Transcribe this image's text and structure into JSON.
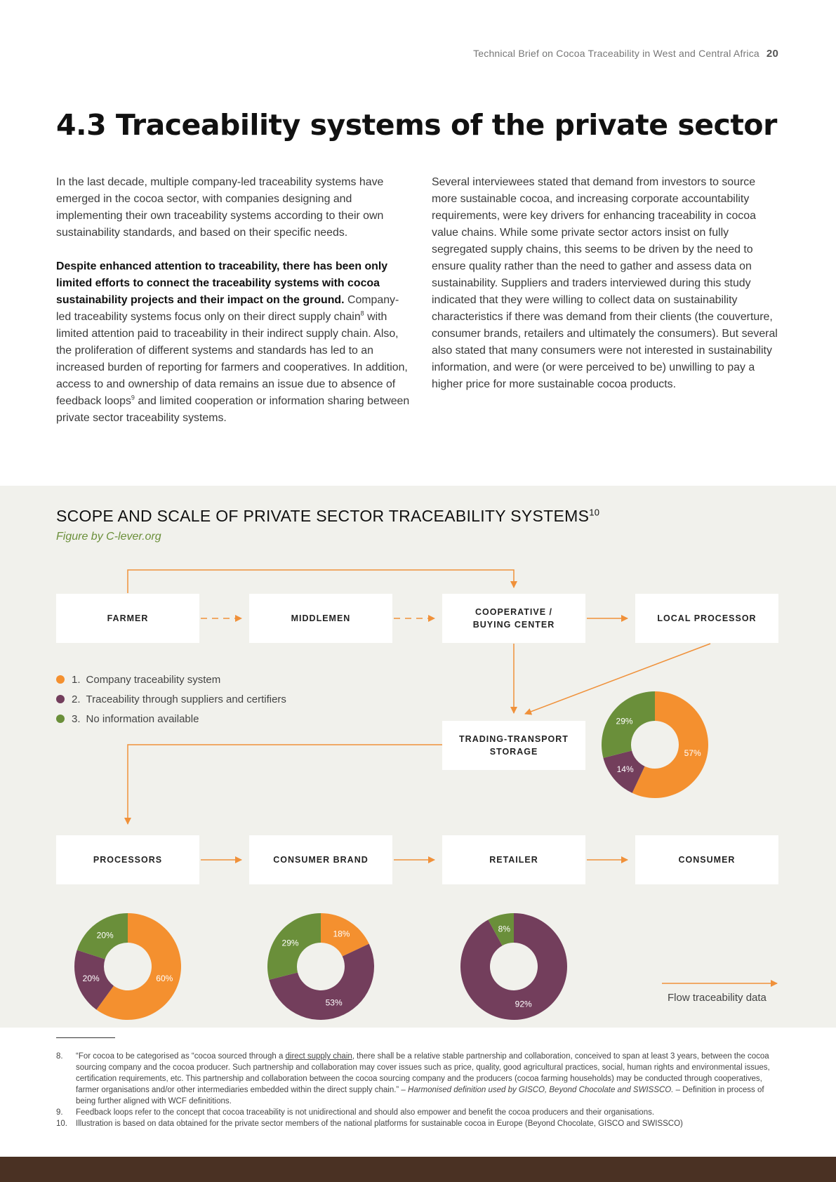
{
  "header": {
    "running_title": "Technical Brief on Cocoa Traceability in West and Central Africa",
    "page_number": "20"
  },
  "section_title": "4.3 Traceability systems of the private sector",
  "left_column": {
    "p1": "In the last decade, multiple company-led traceability systems have emerged in the cocoa sector, with companies designing and implementing their own traceability systems according to their own sustainability standards, and based on their specific needs.",
    "p2_bold": "Despite enhanced attention to traceability, there has been only limited efforts to connect the traceability systems with cocoa sustainability projects and their impact on the ground.",
    "p2_a": "Company-led traceability systems focus only on their direct supply chain",
    "p2_fn8": "8",
    "p2_b": " with limited attention paid to traceability in their indirect supply chain. Also, the proliferation of different systems and standards has led to an increased burden of reporting for farmers and cooperatives. In addition, access to and ownership of data remains an issue due to absence of feedback loops",
    "p2_fn9": "9",
    "p2_c": " and limited cooperation or information sharing between private sector traceability systems."
  },
  "right_column": {
    "p1": "Several interviewees stated that demand from investors to source more sustainable cocoa, and increasing corporate accountability requirements, were key drivers for enhancing traceability in cocoa value chains. While some private sector actors insist on fully segregated supply chains, this seems to be driven by the need to ensure quality rather than the need to gather and assess data on sustainability. Suppliers and traders interviewed during this study indicated that they were willing to collect data on sustainability characteristics if there was demand from their clients (the couverture, consumer brands, retailers and ultimately the consumers). But several also stated that many consumers were not interested in sustainability information, and were (or were perceived to be) unwilling to pay a higher price for more sustainable cocoa products."
  },
  "figure": {
    "title": "SCOPE AND SCALE OF PRIVATE SECTOR TRACEABILITY SYSTEMS",
    "title_fn": "10",
    "credit": "Figure by C-lever.org",
    "boxes": {
      "farmer": "FARMER",
      "middlemen": "MIDDLEMEN",
      "coop_line1": "COOPERATIVE /",
      "coop_line2": "BUYING CENTER",
      "local_processor": "LOCAL PROCESSOR",
      "trading_line1": "TRADING-TRANSPORT",
      "trading_line2": "STORAGE",
      "processors": "PROCESSORS",
      "consumer_brand": "CONSUMER BRAND",
      "retailer": "RETAILER",
      "consumer": "CONSUMER"
    },
    "legend": [
      {
        "num": "1.",
        "label": "Company traceability system",
        "color": "#f4902f"
      },
      {
        "num": "2.",
        "label": "Traceability through suppliers and certifiers",
        "color": "#733e5c"
      },
      {
        "num": "3.",
        "label": "No information available",
        "color": "#6a8f3a"
      }
    ],
    "flow_label": "Flow traceability data",
    "colors": {
      "arrow": "#f0913a",
      "company": "#f4902f",
      "suppliers": "#733e5c",
      "noinfo": "#6a8f3a"
    }
  },
  "chart_data": [
    {
      "type": "pie",
      "stage": "TRADING-TRANSPORT STORAGE",
      "categories": [
        "Company traceability system",
        "Traceability through suppliers and certifiers",
        "No information available"
      ],
      "values": [
        57,
        14,
        29
      ],
      "labels": [
        "57%",
        "14%",
        "29%"
      ]
    },
    {
      "type": "pie",
      "stage": "PROCESSORS",
      "categories": [
        "Company traceability system",
        "Traceability through suppliers and certifiers",
        "No information available"
      ],
      "values": [
        60,
        20,
        20
      ],
      "labels": [
        "60%",
        "20%",
        "20%"
      ]
    },
    {
      "type": "pie",
      "stage": "CONSUMER BRAND",
      "categories": [
        "Company traceability system",
        "Traceability through suppliers and certifiers",
        "No information available"
      ],
      "values": [
        18,
        53,
        29
      ],
      "labels": [
        "18%",
        "53%",
        "29%"
      ]
    },
    {
      "type": "pie",
      "stage": "RETAILER",
      "categories": [
        "Company traceability system",
        "Traceability through suppliers and certifiers",
        "No information available"
      ],
      "values": [
        0,
        92,
        8
      ],
      "labels": [
        "",
        "92%",
        "8%"
      ]
    }
  ],
  "footnotes": {
    "fn8_num": "8.",
    "fn8_a": "“For cocoa to be categorised as “cocoa sourced through a ",
    "fn8_link": "direct supply chain",
    "fn8_b": ", there shall be a relative stable partnership and collaboration, conceived to span at least 3 years, between the cocoa sourcing company and the cocoa producer. Such partnership and collaboration may cover issues such as price, quality, good agricultural practices, social, human rights and environmental issues, certification requirements, etc. This partnership and collaboration between the cocoa sourcing company and the producers (cocoa farming households) may be conducted through cooperatives, farmer organisations and/or other intermediaries embedded within the direct supply chain.” – ",
    "fn8_italic": "Harmonised definition used by GISCO, Beyond Chocolate and SWISSCO.",
    "fn8_c": " – Definition in process of being further aligned with WCF definititions.",
    "fn9_num": "9.",
    "fn9": "Feedback loops refer to the concept that cocoa traceability is not unidirectional and should also empower and benefit the cocoa producers and their organisations.",
    "fn10_num": "10.",
    "fn10": "Illustration is based on data obtained for the private sector members of the national platforms for sustainable cocoa in Europe (Beyond Chocolate, GISCO and SWISSCO)"
  }
}
